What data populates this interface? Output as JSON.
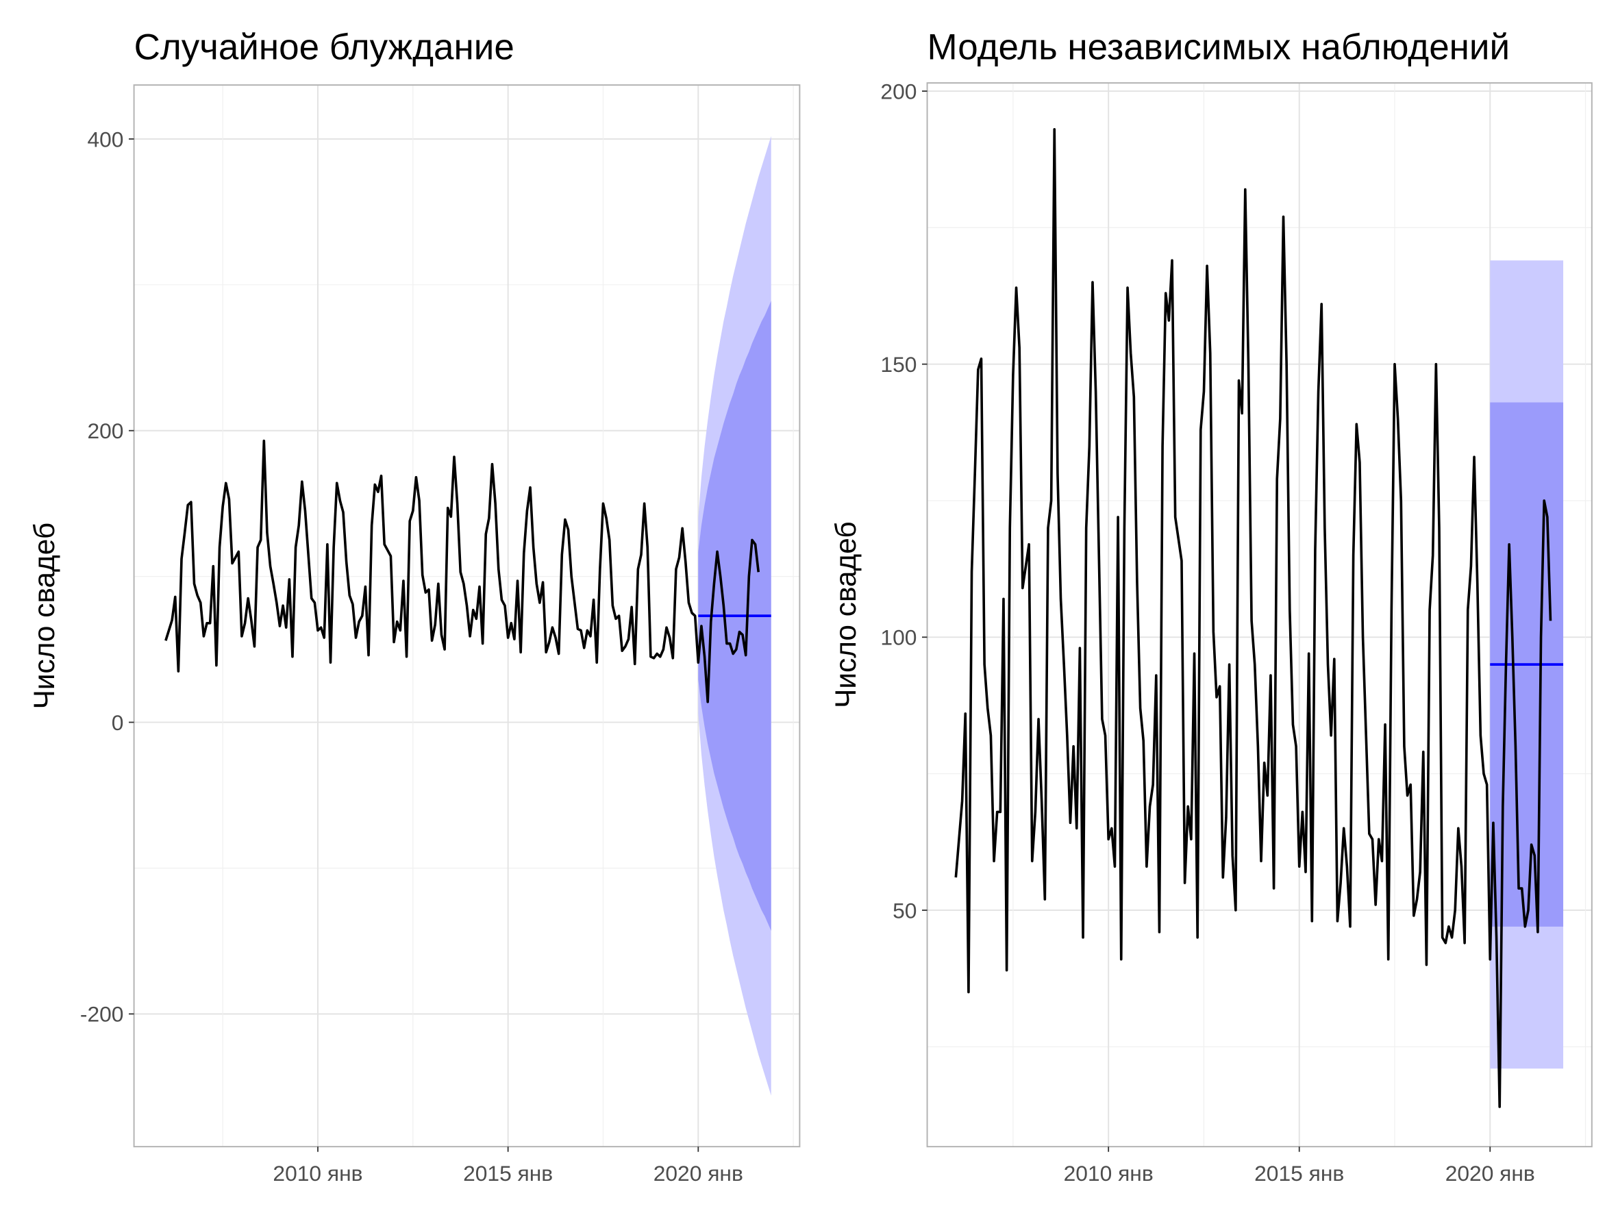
{
  "chart_data": [
    {
      "type": "line",
      "title": "Случайное блуждание",
      "ylabel": "Число свадеб",
      "color": "#000000",
      "x": [
        "2006-01",
        "2006-02",
        "2006-03",
        "2006-04",
        "2006-05",
        "2006-06",
        "2006-07",
        "2006-08",
        "2006-09",
        "2006-10",
        "2006-11",
        "2006-12",
        "2007-01",
        "2007-02",
        "2007-03",
        "2007-04",
        "2007-05",
        "2007-06",
        "2007-07",
        "2007-08",
        "2007-09",
        "2007-10",
        "2007-11",
        "2007-12",
        "2008-01",
        "2008-02",
        "2008-03",
        "2008-04",
        "2008-05",
        "2008-06",
        "2008-07",
        "2008-08",
        "2008-09",
        "2008-10",
        "2008-11",
        "2008-12",
        "2009-01",
        "2009-02",
        "2009-03",
        "2009-04",
        "2009-05",
        "2009-06",
        "2009-07",
        "2009-08",
        "2009-09",
        "2009-10",
        "2009-11",
        "2009-12",
        "2010-01",
        "2010-02",
        "2010-03",
        "2010-04",
        "2010-05",
        "2010-06",
        "2010-07",
        "2010-08",
        "2010-09",
        "2010-10",
        "2010-11",
        "2010-12",
        "2011-01",
        "2011-02",
        "2011-03",
        "2011-04",
        "2011-05",
        "2011-06",
        "2011-07",
        "2011-08",
        "2011-09",
        "2011-10",
        "2011-11",
        "2011-12",
        "2012-01",
        "2012-02",
        "2012-03",
        "2012-04",
        "2012-05",
        "2012-06",
        "2012-07",
        "2012-08",
        "2012-09",
        "2012-10",
        "2012-11",
        "2012-12",
        "2013-01",
        "2013-02",
        "2013-03",
        "2013-04",
        "2013-05",
        "2013-06",
        "2013-07",
        "2013-08",
        "2013-09",
        "2013-10",
        "2013-11",
        "2013-12",
        "2014-01",
        "2014-02",
        "2014-03",
        "2014-04",
        "2014-05",
        "2014-06",
        "2014-07",
        "2014-08",
        "2014-09",
        "2014-10",
        "2014-11",
        "2014-12",
        "2015-01",
        "2015-02",
        "2015-03",
        "2015-04",
        "2015-05",
        "2015-06",
        "2015-07",
        "2015-08",
        "2015-09",
        "2015-10",
        "2015-11",
        "2015-12",
        "2016-01",
        "2016-02",
        "2016-03",
        "2016-04",
        "2016-05",
        "2016-06",
        "2016-07",
        "2016-08",
        "2016-09",
        "2016-10",
        "2016-11",
        "2016-12",
        "2017-01",
        "2017-02",
        "2017-03",
        "2017-04",
        "2017-05",
        "2017-06",
        "2017-07",
        "2017-08",
        "2017-09",
        "2017-10",
        "2017-11",
        "2017-12",
        "2018-01",
        "2018-02",
        "2018-03",
        "2018-04",
        "2018-05",
        "2018-06",
        "2018-07",
        "2018-08",
        "2018-09",
        "2018-10",
        "2018-11",
        "2018-12",
        "2019-01",
        "2019-02",
        "2019-03",
        "2019-04",
        "2019-05",
        "2019-06",
        "2019-07",
        "2019-08",
        "2019-09",
        "2019-10",
        "2019-11",
        "2019-12",
        "2020-01",
        "2020-02",
        "2020-03",
        "2020-04",
        "2020-05",
        "2020-06",
        "2020-07",
        "2020-08",
        "2020-09",
        "2020-10",
        "2020-11",
        "2020-12",
        "2021-01",
        "2021-02",
        "2021-03",
        "2021-04",
        "2021-05",
        "2021-06",
        "2021-07",
        "2021-08"
      ],
      "values": [
        56,
        63,
        70,
        86,
        35,
        112,
        130,
        149,
        151,
        95,
        87,
        82,
        59,
        68,
        68,
        107,
        39,
        120,
        148,
        164,
        153,
        109,
        113,
        117,
        59,
        68,
        85,
        70,
        52,
        120,
        125,
        193,
        130,
        107,
        95,
        82,
        66,
        80,
        65,
        98,
        45,
        120,
        135,
        165,
        145,
        115,
        85,
        82,
        63,
        65,
        58,
        122,
        41,
        120,
        164,
        152,
        144,
        110,
        87,
        81,
        58,
        69,
        73,
        93,
        46,
        135,
        163,
        158,
        169,
        122,
        118,
        114,
        55,
        69,
        63,
        97,
        45,
        138,
        145,
        168,
        152,
        101,
        89,
        91,
        56,
        67,
        95,
        60,
        50,
        147,
        141,
        182,
        150,
        103,
        95,
        80,
        59,
        77,
        71,
        93,
        54,
        129,
        140,
        177,
        150,
        105,
        84,
        80,
        58,
        68,
        57,
        97,
        48,
        116,
        145,
        161,
        120,
        95,
        82,
        96,
        48,
        55,
        65,
        58,
        47,
        115,
        139,
        132,
        100,
        82,
        64,
        63,
        51,
        63,
        59,
        84,
        41,
        105,
        150,
        140,
        125,
        80,
        71,
        73,
        49,
        52,
        57,
        79,
        40,
        105,
        115,
        150,
        120,
        45,
        44,
        47,
        45,
        50,
        65,
        58,
        44,
        105,
        113,
        133,
        110,
        82,
        75,
        73,
        41,
        66,
        45,
        14,
        69,
        95,
        117,
        100,
        80,
        54,
        54,
        47,
        50,
        62,
        60,
        46,
        100,
        125,
        122,
        103
      ],
      "forecast": {
        "mean_color": "#0000ff",
        "color80": "#9b9bfb",
        "color95": "#cbcbff",
        "x": [
          "2020-01",
          "2020-02",
          "2020-03",
          "2020-04",
          "2020-05",
          "2020-06",
          "2020-07",
          "2020-08",
          "2020-09",
          "2020-10",
          "2020-11",
          "2020-12",
          "2021-01",
          "2021-02",
          "2021-03",
          "2021-04",
          "2021-05",
          "2021-06",
          "2021-07",
          "2021-08",
          "2021-09",
          "2021-10",
          "2021-11",
          "2021-12"
        ],
        "mean": [
          73,
          73,
          73,
          73,
          73,
          73,
          73,
          73,
          73,
          73,
          73,
          73,
          73,
          73,
          73,
          73,
          73,
          73,
          73,
          73,
          73,
          73,
          73,
          73
        ],
        "upper80": [
          117,
          135,
          149,
          161,
          171,
          181,
          189,
          197,
          205,
          212,
          219,
          225,
          232,
          238,
          243,
          249,
          254,
          260,
          265,
          270,
          275,
          279,
          284,
          289
        ],
        "lower80": [
          29,
          11,
          -3,
          -15,
          -25,
          -35,
          -43,
          -51,
          -59,
          -66,
          -73,
          -79,
          -86,
          -92,
          -97,
          -103,
          -108,
          -114,
          -119,
          -124,
          -129,
          -133,
          -138,
          -143
        ],
        "upper95": [
          140,
          168,
          189,
          207,
          223,
          238,
          251,
          263,
          275,
          285,
          296,
          306,
          315,
          324,
          333,
          342,
          350,
          358,
          366,
          374,
          381,
          388,
          395,
          402
        ],
        "lower95": [
          6,
          -22,
          -43,
          -61,
          -77,
          -92,
          -105,
          -117,
          -129,
          -139,
          -150,
          -160,
          -169,
          -178,
          -187,
          -196,
          -204,
          -212,
          -220,
          -228,
          -235,
          -242,
          -249,
          -256
        ]
      },
      "xlim": [
        "2005-03",
        "2022-09"
      ],
      "xticks": [
        {
          "value": "2010-01",
          "label": "2010 янв"
        },
        {
          "value": "2015-01",
          "label": "2015 янв"
        },
        {
          "value": "2020-01",
          "label": "2020 янв"
        }
      ],
      "ylim": [
        -291,
        437
      ],
      "yticks": [
        -200,
        0,
        200,
        400
      ],
      "grid": true
    },
    {
      "type": "line",
      "title": "Модель независимых наблюдений",
      "ylabel": "Число свадеб",
      "color": "#000000",
      "x": [
        "2006-01",
        "2006-02",
        "2006-03",
        "2006-04",
        "2006-05",
        "2006-06",
        "2006-07",
        "2006-08",
        "2006-09",
        "2006-10",
        "2006-11",
        "2006-12",
        "2007-01",
        "2007-02",
        "2007-03",
        "2007-04",
        "2007-05",
        "2007-06",
        "2007-07",
        "2007-08",
        "2007-09",
        "2007-10",
        "2007-11",
        "2007-12",
        "2008-01",
        "2008-02",
        "2008-03",
        "2008-04",
        "2008-05",
        "2008-06",
        "2008-07",
        "2008-08",
        "2008-09",
        "2008-10",
        "2008-11",
        "2008-12",
        "2009-01",
        "2009-02",
        "2009-03",
        "2009-04",
        "2009-05",
        "2009-06",
        "2009-07",
        "2009-08",
        "2009-09",
        "2009-10",
        "2009-11",
        "2009-12",
        "2010-01",
        "2010-02",
        "2010-03",
        "2010-04",
        "2010-05",
        "2010-06",
        "2010-07",
        "2010-08",
        "2010-09",
        "2010-10",
        "2010-11",
        "2010-12",
        "2011-01",
        "2011-02",
        "2011-03",
        "2011-04",
        "2011-05",
        "2011-06",
        "2011-07",
        "2011-08",
        "2011-09",
        "2011-10",
        "2011-11",
        "2011-12",
        "2012-01",
        "2012-02",
        "2012-03",
        "2012-04",
        "2012-05",
        "2012-06",
        "2012-07",
        "2012-08",
        "2012-09",
        "2012-10",
        "2012-11",
        "2012-12",
        "2013-01",
        "2013-02",
        "2013-03",
        "2013-04",
        "2013-05",
        "2013-06",
        "2013-07",
        "2013-08",
        "2013-09",
        "2013-10",
        "2013-11",
        "2013-12",
        "2014-01",
        "2014-02",
        "2014-03",
        "2014-04",
        "2014-05",
        "2014-06",
        "2014-07",
        "2014-08",
        "2014-09",
        "2014-10",
        "2014-11",
        "2014-12",
        "2015-01",
        "2015-02",
        "2015-03",
        "2015-04",
        "2015-05",
        "2015-06",
        "2015-07",
        "2015-08",
        "2015-09",
        "2015-10",
        "2015-11",
        "2015-12",
        "2016-01",
        "2016-02",
        "2016-03",
        "2016-04",
        "2016-05",
        "2016-06",
        "2016-07",
        "2016-08",
        "2016-09",
        "2016-10",
        "2016-11",
        "2016-12",
        "2017-01",
        "2017-02",
        "2017-03",
        "2017-04",
        "2017-05",
        "2017-06",
        "2017-07",
        "2017-08",
        "2017-09",
        "2017-10",
        "2017-11",
        "2017-12",
        "2018-01",
        "2018-02",
        "2018-03",
        "2018-04",
        "2018-05",
        "2018-06",
        "2018-07",
        "2018-08",
        "2018-09",
        "2018-10",
        "2018-11",
        "2018-12",
        "2019-01",
        "2019-02",
        "2019-03",
        "2019-04",
        "2019-05",
        "2019-06",
        "2019-07",
        "2019-08",
        "2019-09",
        "2019-10",
        "2019-11",
        "2019-12",
        "2020-01",
        "2020-02",
        "2020-03",
        "2020-04",
        "2020-05",
        "2020-06",
        "2020-07",
        "2020-08",
        "2020-09",
        "2020-10",
        "2020-11",
        "2020-12",
        "2021-01",
        "2021-02",
        "2021-03",
        "2021-04",
        "2021-05",
        "2021-06",
        "2021-07",
        "2021-08"
      ],
      "values": [
        56,
        63,
        70,
        86,
        35,
        112,
        130,
        149,
        151,
        95,
        87,
        82,
        59,
        68,
        68,
        107,
        39,
        120,
        148,
        164,
        153,
        109,
        113,
        117,
        59,
        68,
        85,
        70,
        52,
        120,
        125,
        193,
        130,
        107,
        95,
        82,
        66,
        80,
        65,
        98,
        45,
        120,
        135,
        165,
        145,
        115,
        85,
        82,
        63,
        65,
        58,
        122,
        41,
        120,
        164,
        152,
        144,
        110,
        87,
        81,
        58,
        69,
        73,
        93,
        46,
        135,
        163,
        158,
        169,
        122,
        118,
        114,
        55,
        69,
        63,
        97,
        45,
        138,
        145,
        168,
        152,
        101,
        89,
        91,
        56,
        67,
        95,
        60,
        50,
        147,
        141,
        182,
        150,
        103,
        95,
        80,
        59,
        77,
        71,
        93,
        54,
        129,
        140,
        177,
        150,
        105,
        84,
        80,
        58,
        68,
        57,
        97,
        48,
        116,
        145,
        161,
        120,
        95,
        82,
        96,
        48,
        55,
        65,
        58,
        47,
        115,
        139,
        132,
        100,
        82,
        64,
        63,
        51,
        63,
        59,
        84,
        41,
        105,
        150,
        140,
        125,
        80,
        71,
        73,
        49,
        52,
        57,
        79,
        40,
        105,
        115,
        150,
        120,
        45,
        44,
        47,
        45,
        50,
        65,
        58,
        44,
        105,
        113,
        133,
        110,
        82,
        75,
        73,
        41,
        66,
        45,
        14,
        69,
        95,
        117,
        100,
        80,
        54,
        54,
        47,
        50,
        62,
        60,
        46,
        100,
        125,
        122,
        103
      ],
      "forecast": {
        "mean_color": "#0000ff",
        "color80": "#9b9bfb",
        "color95": "#cbcbff",
        "x": [
          "2020-01",
          "2021-12"
        ],
        "mean": [
          95,
          95
        ],
        "upper80": [
          143,
          143
        ],
        "lower80": [
          47,
          47
        ],
        "upper95": [
          169,
          169
        ],
        "lower95": [
          21,
          21
        ]
      },
      "xlim": [
        "2005-04",
        "2022-09"
      ],
      "xticks": [
        {
          "value": "2010-01",
          "label": "2010 янв"
        },
        {
          "value": "2015-01",
          "label": "2015 янв"
        },
        {
          "value": "2020-01",
          "label": "2020 янв"
        }
      ],
      "ylim": [
        6.7,
        201.5
      ],
      "yticks": [
        50,
        100,
        150,
        200
      ],
      "grid": true
    }
  ]
}
